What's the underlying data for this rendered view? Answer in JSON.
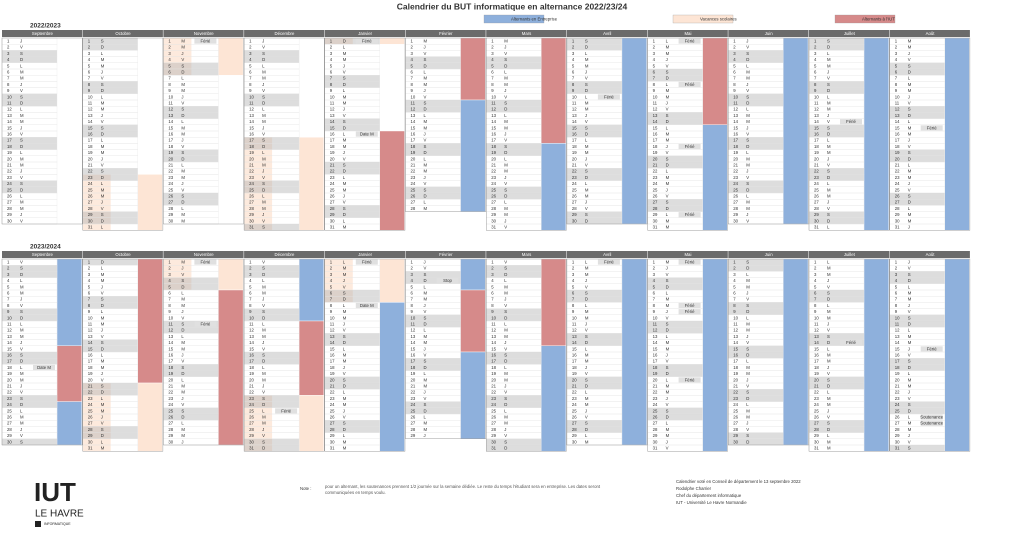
{
  "title": "Calendrier du BUT informatique en alternance 2022/23/24",
  "legend": [
    {
      "code": "E",
      "label": "Alternants en Entreprise",
      "color": "#8eb0dc"
    },
    {
      "code": "V",
      "label": "Vacances scolaires",
      "color": "#fde5d5"
    },
    {
      "code": "I",
      "label": "Alternants à l'IUT",
      "color": "#d68a8a"
    }
  ],
  "day_numbers": [
    1,
    2,
    3,
    4,
    5,
    6,
    7,
    8,
    9,
    10,
    11,
    12,
    13,
    14,
    15,
    16,
    17,
    18,
    19,
    20,
    21,
    22,
    23,
    24,
    25,
    26,
    27,
    28,
    29,
    30,
    31
  ],
  "calendars": [
    {
      "year": "2022/2023",
      "months": [
        {
          "name": "Septembre",
          "days": "JVSDLMMJVSDLMMJVSDLMMJVSDLMMJV",
          "runs": [
            [
              "-",
              30
            ]
          ]
        },
        {
          "name": "Octobre",
          "days": "SDLMMJVSDLMMJVSDLMMJVSDLMMJVSDL",
          "runs": [
            [
              "-",
              22
            ],
            [
              "V",
              9
            ]
          ]
        },
        {
          "name": "Novembre",
          "days": "MMJVSDLMMJVSDLMMJVSDLMMJVSDLMM",
          "runs": [
            [
              "V",
              6
            ],
            [
              "-",
              24
            ]
          ],
          "notes": [
            {
              "day": 0,
              "text": "Férié"
            }
          ]
        },
        {
          "name": "Décembre",
          "days": "JVSDLMMJVSDLMMJVSDLMMJVSDLMMJVS",
          "runs": [
            [
              "-",
              16
            ],
            [
              "V",
              15
            ]
          ]
        },
        {
          "name": "Janvier",
          "days": "DLMMJVSDLMMJVSDLMMJVSDLMMJVSDLM",
          "runs": [
            [
              "V",
              1
            ],
            [
              "-",
              14
            ],
            [
              "I",
              16
            ]
          ],
          "notes": [
            {
              "day": 0,
              "text": "Férié"
            },
            {
              "day": 15,
              "text": "Date M"
            }
          ]
        },
        {
          "name": "Février",
          "days": "MJVSDLMMJVSDLMMJVSDLMMJVSDLM",
          "runs": [
            [
              "I",
              10
            ],
            [
              "E",
              18
            ]
          ]
        },
        {
          "name": "Mars",
          "days": "MJVSDLMMJVSDLMMJVSDLMMJVSDLMMJV",
          "runs": [
            [
              "I",
              17
            ],
            [
              "E",
              14
            ]
          ]
        },
        {
          "name": "Avril",
          "days": "SDLMMJVSDLMMJVSDLMMJVSDLMMJVSD",
          "runs": [
            [
              "E",
              30
            ]
          ],
          "notes": [
            {
              "day": 9,
              "text": "Férié"
            }
          ]
        },
        {
          "name": "Mai",
          "days": "LMMJVSDLMMJVSDLMMJVSDLMMJVSDLMM",
          "runs": [
            [
              "I",
              14
            ],
            [
              "E",
              17
            ]
          ],
          "notes": [
            {
              "day": 0,
              "text": "Férié"
            },
            {
              "day": 7,
              "text": "Férié"
            },
            {
              "day": 17,
              "text": "Férié"
            },
            {
              "day": 28,
              "text": "Férié"
            }
          ]
        },
        {
          "name": "Juin",
          "days": "JVSDLMMJVSDLMMJVSDLMMJVSDLMMJV",
          "runs": [
            [
              "E",
              30
            ]
          ]
        },
        {
          "name": "Juillet",
          "days": "SDLMMJVSDLMMJVSDLMMJVSDLMMJVSDL",
          "runs": [
            [
              "E",
              31
            ]
          ],
          "notes": [
            {
              "day": 13,
              "text": "Férié"
            }
          ]
        },
        {
          "name": "Août",
          "days": "MMJVSDLMMJVSDLMMJVSDLMMJVSDLMMJ",
          "runs": [
            [
              "E",
              31
            ]
          ],
          "notes": [
            {
              "day": 14,
              "text": "Férié"
            }
          ]
        }
      ]
    },
    {
      "year": "2023/2024",
      "months": [
        {
          "name": "Septembre",
          "days": "VSDLMMJVSDLMMJVSDLMMJVSDLMMJVS",
          "runs": [
            [
              "E",
              14
            ],
            [
              "I",
              9
            ],
            [
              "E",
              7
            ]
          ],
          "notes": [
            {
              "day": 17,
              "text": "Date M"
            }
          ]
        },
        {
          "name": "Octobre",
          "days": "DLMMJVSDLMMJVSDLMMJVSDLMMJVSDLM",
          "runs": [
            [
              "I",
              20
            ],
            [
              "V",
              11
            ]
          ]
        },
        {
          "name": "Novembre",
          "days": "MJVSDLMMJVSDLMMJVSDLMMJVSDLMMJ",
          "runs": [
            [
              "V",
              5
            ],
            [
              "I",
              25
            ]
          ],
          "notes": [
            {
              "day": 0,
              "text": "Férié"
            },
            {
              "day": 10,
              "text": "Férié"
            }
          ]
        },
        {
          "name": "Décembre",
          "days": "VSDLMMJVSDLMMJVSDLMMJVSDLMMJVSD",
          "runs": [
            [
              "E",
              10
            ],
            [
              "I",
              12
            ],
            [
              "V",
              9
            ]
          ],
          "notes": [
            {
              "day": 24,
              "text": "Férié"
            }
          ]
        },
        {
          "name": "Janvier",
          "days": "LMMJVSDLMMJVSDLMMJVSDLMMJVSDLMM",
          "runs": [
            [
              "V",
              7
            ],
            [
              "E",
              24
            ]
          ],
          "notes": [
            {
              "day": 0,
              "text": "Férié"
            },
            {
              "day": 7,
              "text": "Date M"
            }
          ]
        },
        {
          "name": "Février",
          "days": "JVSDLMMJVSDLMMJVSDLMMJVSDLMMJ",
          "runs": [
            [
              "E",
              5
            ],
            [
              "I",
              10
            ],
            [
              "E",
              14
            ]
          ],
          "notes": [
            {
              "day": 3,
              "text": "Stop"
            }
          ]
        },
        {
          "name": "Mars",
          "days": "VSDLMMJVSDLMMJVSDLMMJVSDLMMJVSD",
          "runs": [
            [
              "I",
              14
            ],
            [
              "E",
              17
            ]
          ]
        },
        {
          "name": "Avril",
          "days": "LMMJVSDLMMJVSDLMMJVSDLMMJVSDLM",
          "runs": [
            [
              "E",
              30
            ]
          ],
          "notes": [
            {
              "day": 0,
              "text": "Férié"
            }
          ]
        },
        {
          "name": "Mai",
          "days": "MJVSDLMMJVSDLMMJVSDLMMJVSDLMMJV",
          "runs": [
            [
              "E",
              31
            ]
          ],
          "notes": [
            {
              "day": 0,
              "text": "Férié"
            },
            {
              "day": 7,
              "text": "Férié"
            },
            {
              "day": 8,
              "text": "Férié"
            },
            {
              "day": 19,
              "text": "Férié"
            }
          ]
        },
        {
          "name": "Juin",
          "days": "SDLMMJVSDLMMJVSDLMMJVSDLMMJVSD",
          "runs": [
            [
              "E",
              30
            ]
          ]
        },
        {
          "name": "Juillet",
          "days": "LMMJVSDLMMJVSDLMMJVSDLMMJVSDLMM",
          "runs": [
            [
              "E",
              31
            ]
          ],
          "notes": [
            {
              "day": 13,
              "text": "Férié"
            }
          ]
        },
        {
          "name": "Août",
          "days": "JVSDLMMJVSDLMMJVSDLMMJVSDLMMJVS",
          "runs": [
            [
              "E",
              31
            ]
          ],
          "notes": [
            {
              "day": 14,
              "text": "Férié"
            },
            {
              "day": 25,
              "text": "Soutenance"
            },
            {
              "day": 26,
              "text": "Soutenance"
            }
          ]
        }
      ]
    }
  ],
  "footer": {
    "note_label": "Note :",
    "note": "pour un alternant, les soutenances prennent 1/2 journée sur la semaine dédiée. Le reste du temps l'étudiant sera en entreprise. Les dates seront communiquées en temps voulu.",
    "signature": [
      "Calendrier voté en Conseil de département le 13 septembre 2022",
      "Rodolphe Charrier",
      "Chef du département informatique",
      "IUT - Université Le Havre Normandie"
    ],
    "logo": [
      "IUT",
      "LE HAVRE",
      "INFORMATIQUE"
    ]
  }
}
